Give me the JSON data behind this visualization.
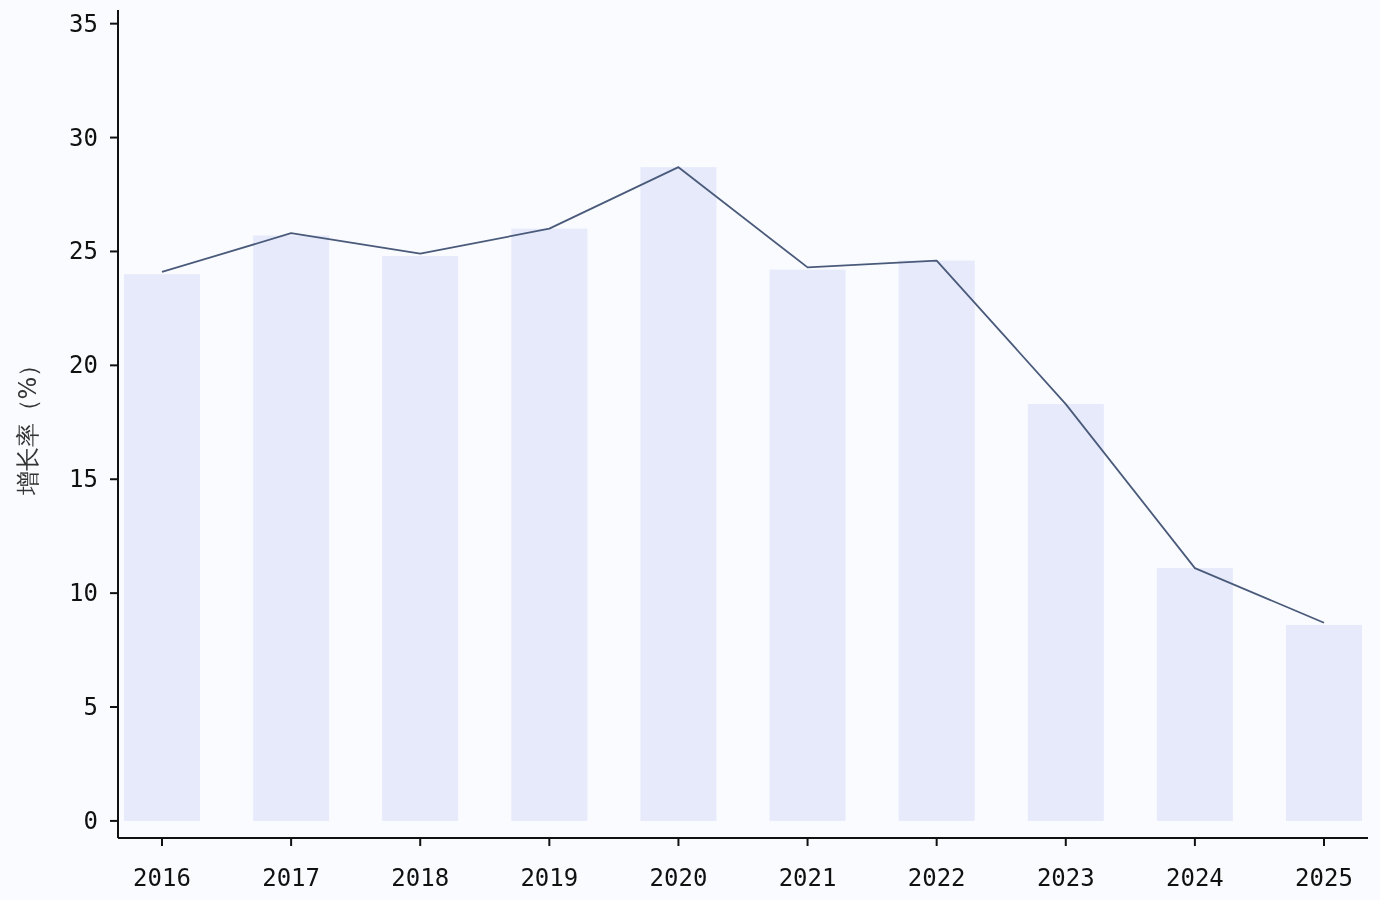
{
  "chart_data": {
    "type": "bar",
    "ylabel": "增长率（%）",
    "categories": [
      "2016",
      "2017",
      "2018",
      "2019",
      "2020",
      "2021",
      "2022",
      "2023",
      "2024",
      "2025"
    ],
    "series": [
      {
        "color": "#e6eafb",
        "values": [
          24.0,
          25.7,
          24.8,
          26.0,
          28.7,
          24.2,
          24.6,
          18.3,
          11.1,
          8.6
        ]
      },
      {
        "type": "line",
        "color": "#4a5a7a",
        "values": [
          24.1,
          25.8,
          24.9,
          26.0,
          28.7,
          24.3,
          24.6,
          18.3,
          11.1,
          8.7
        ]
      }
    ],
    "ylim": [
      -0.75,
      35.6
    ],
    "yticks": [
      0,
      5,
      10,
      15,
      20,
      25,
      30,
      35
    ],
    "grid": false,
    "marker": "none",
    "line_style": "solid"
  }
}
